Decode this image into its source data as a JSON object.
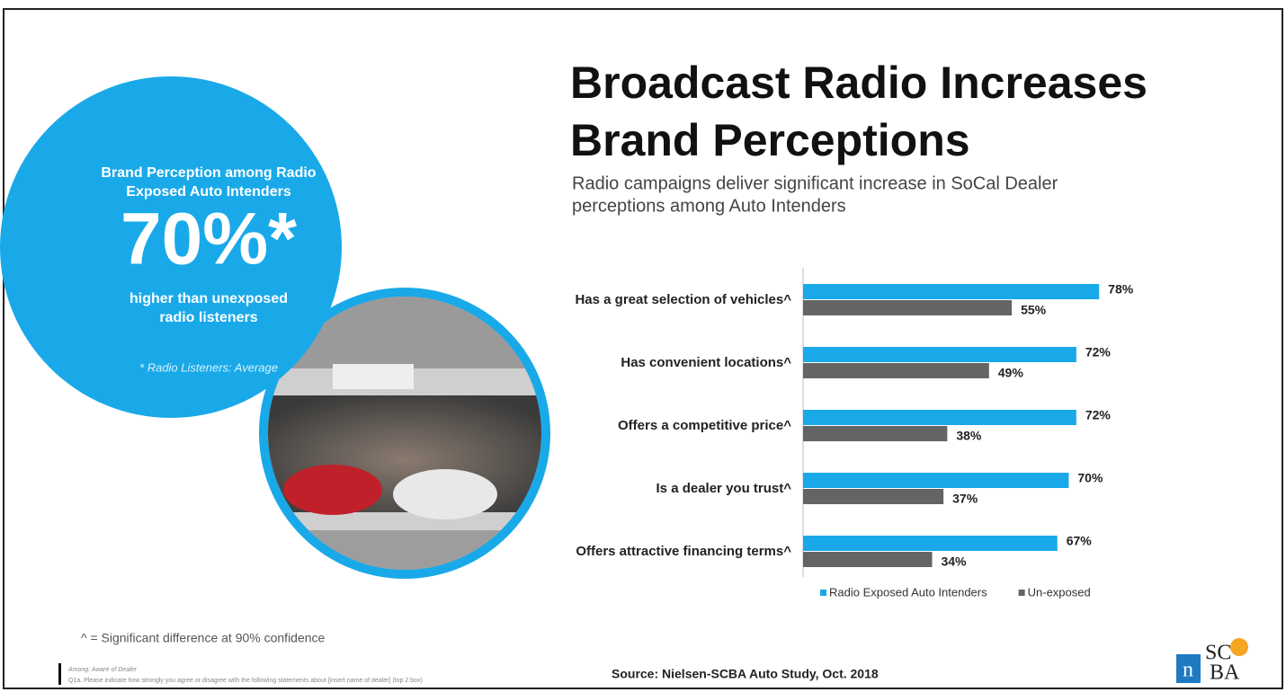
{
  "slide": {
    "title": [
      "Broadcast Radio Increases",
      "Brand Perceptions"
    ],
    "subtitle": [
      "Radio campaigns deliver significant increase in SoCal Dealer",
      "perceptions among Auto Intenders"
    ],
    "callout": {
      "heading": [
        "Brand Perception among Radio",
        "Exposed Auto Intenders"
      ],
      "big_number": "70%*",
      "caption": [
        "higher than unexposed",
        "radio listeners"
      ],
      "note": "* Radio Listeners: Average"
    },
    "significance_note": "^ = Significant difference at 90% confidence",
    "fine_print": [
      "Among: Aware of Dealer",
      "Q1a. Please indicate how strongly you agree or disagree with the following statements about [insert name of dealer] (top 2 box)"
    ],
    "source": "Source: Nielsen-SCBA Auto Study, Oct. 2018",
    "logo": {
      "n": "n",
      "scba": [
        "SC",
        "BA"
      ]
    }
  },
  "chart_data": {
    "type": "hbar",
    "categories": [
      "Has a great selection of vehicles^",
      "Has convenient locations^",
      "Offers a competitive price^",
      "Is a dealer you trust^",
      "Offers attractive financing terms^"
    ],
    "series": [
      {
        "name": "Radio Exposed Auto Intenders",
        "color": "#19a9e9",
        "values": [
          78,
          72,
          72,
          70,
          67
        ],
        "value_labels": [
          "78%",
          "72%",
          "72%",
          "70%",
          "67%"
        ]
      },
      {
        "name": "Un-exposed",
        "color": "#646464",
        "values": [
          55,
          49,
          38,
          37,
          34
        ],
        "value_labels": [
          "55%",
          "49%",
          "38%",
          "37%",
          "34%"
        ]
      }
    ],
    "legend": "bottom"
  }
}
